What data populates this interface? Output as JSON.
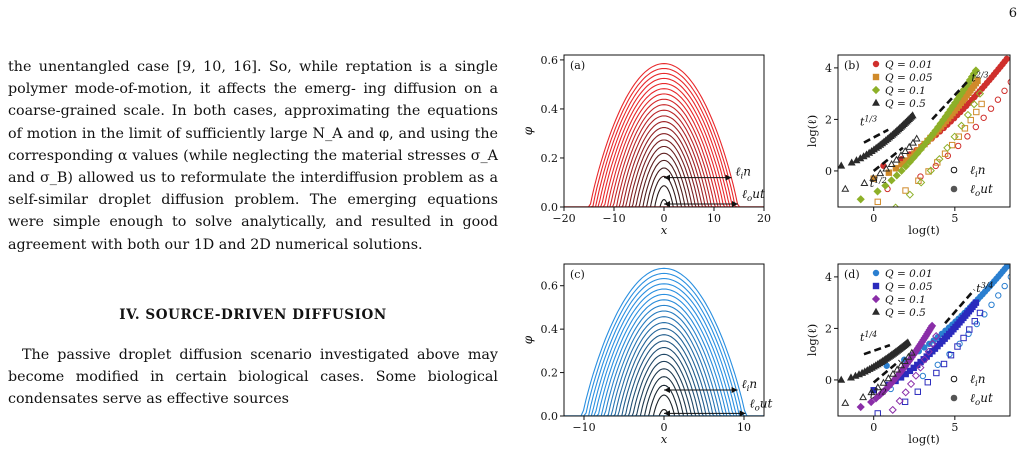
{
  "page_number": "6",
  "text": {
    "para1_lines": [
      "the unentangled case [9, 10, 16]. So, while reptation is",
      "a single polymer mode-of-motion, it affects the emerg-",
      "ing diffusion on a coarse-grained scale. In both cases,",
      "approximating the equations of motion in the limit of",
      "sufficiently large N_A and φ, and using the corresponding",
      "α values (while neglecting the material stresses σ_A and",
      "σ_B) allowed us to reformulate the interdiffusion problem",
      "as a self-similar droplet diffusion problem. The emerging",
      "equations were simple enough to solve analytically, and",
      "resulted in good agreement with both our 1D and 2D",
      "numerical solutions."
    ],
    "section_heading": "IV.   SOURCE-DRIVEN DIFFUSION",
    "para2_lines": [
      "The passive droplet diffusion scenario investigated",
      "above may become modified in certain biological cases.",
      "Some biological condensates serve as effective sources"
    ]
  },
  "chart_data": [
    {
      "type": "line",
      "panel_label": "(a)",
      "xlabel": "x",
      "ylabel": "φ",
      "xlim": [
        -20,
        20
      ],
      "ylim": [
        0,
        0.62
      ],
      "xticks": [
        -20,
        -10,
        0,
        10,
        20
      ],
      "yticks": [
        0.0,
        0.2,
        0.4,
        0.6
      ],
      "profiles": {
        "count": 22,
        "peak_min": 0.03,
        "peak_max": 0.585,
        "halfwidth_min": 0.8,
        "halfwidth_max": 14.8
      },
      "colors": {
        "dark": "#1a1a1a",
        "bright": "#e8282b"
      },
      "arrow_labels": [
        "ℓ_in",
        "ℓ_out"
      ],
      "arrows": [
        {
          "from_x": 0,
          "to_x": 13.5,
          "y": 0.12
        },
        {
          "from_x": 0,
          "to_x": 14.8,
          "y": 0.012
        }
      ]
    },
    {
      "type": "scatter",
      "panel_label": "(b)",
      "xlabel": "log(t)",
      "ylabel": "log(ℓ)",
      "xlim": [
        -2.2,
        8.4
      ],
      "ylim": [
        -1.4,
        4.5
      ],
      "xticks": [
        0,
        5
      ],
      "yticks": [
        0,
        2,
        4
      ],
      "legend": [
        "Q = 0.01",
        "Q = 0.05",
        "Q = 0.1",
        "Q = 0.5"
      ],
      "markers": [
        "circle",
        "square",
        "diamond",
        "triangle"
      ],
      "colors": [
        "#cf2f2c",
        "#d08a2a",
        "#8db028",
        "#2b2b2b"
      ],
      "legend_open": "ℓ_in",
      "legend_filled": "ℓ_out",
      "slopes": [
        {
          "label": "t^{1/3}",
          "x0": -0.6,
          "y0": 1.1,
          "x1": 0.9,
          "y1": 1.6
        },
        {
          "label": "t^{1/2}",
          "x0": 0.0,
          "y0": 0.0,
          "x1": 1.8,
          "y1": 0.9
        },
        {
          "label": "t^{2/3}",
          "x0": 3.6,
          "y0": 2.0,
          "x1": 5.9,
          "y1": 3.55
        }
      ]
    },
    {
      "type": "line",
      "panel_label": "(c)",
      "xlabel": "x",
      "ylabel": "φ",
      "xlim": [
        -12.5,
        12.5
      ],
      "ylim": [
        0,
        0.7
      ],
      "xticks": [
        -10,
        0,
        10
      ],
      "yticks": [
        0.0,
        0.2,
        0.4,
        0.6
      ],
      "profiles": {
        "count": 22,
        "peak_min": 0.03,
        "peak_max": 0.68,
        "halfwidth_min": 0.6,
        "halfwidth_max": 10.2
      },
      "colors": {
        "dark": "#1a1a1a",
        "bright": "#2a8fe0"
      },
      "arrow_labels": [
        "ℓ_in",
        "ℓ_out"
      ],
      "arrows": [
        {
          "from_x": 0,
          "to_x": 9.2,
          "y": 0.12
        },
        {
          "from_x": 0,
          "to_x": 10.2,
          "y": 0.012
        }
      ]
    },
    {
      "type": "scatter",
      "panel_label": "(d)",
      "xlabel": "log(t)",
      "ylabel": "log(ℓ)",
      "xlim": [
        -2.2,
        8.4
      ],
      "ylim": [
        -1.4,
        4.5
      ],
      "xticks": [
        0,
        5
      ],
      "yticks": [
        0,
        2,
        4
      ],
      "legend": [
        "Q = 0.01",
        "Q = 0.05",
        "Q = 0.1",
        "Q = 0.5"
      ],
      "markers": [
        "circle",
        "square",
        "diamond",
        "triangle"
      ],
      "colors": [
        "#2a7fd0",
        "#2b2bbd",
        "#8a2ea8",
        "#2b2b2b"
      ],
      "legend_open": "ℓ_in",
      "legend_filled": "ℓ_out",
      "slopes": [
        {
          "label": "t^{1/4}",
          "x0": -0.6,
          "y0": 1.0,
          "x1": 1.0,
          "y1": 1.35
        },
        {
          "label": "t^{1/2}",
          "x0": 0.0,
          "y0": -0.1,
          "x1": 1.6,
          "y1": 0.75
        },
        {
          "label": "t^{3/4}",
          "x0": 4.4,
          "y0": 2.2,
          "x1": 6.2,
          "y1": 3.5
        }
      ]
    }
  ]
}
